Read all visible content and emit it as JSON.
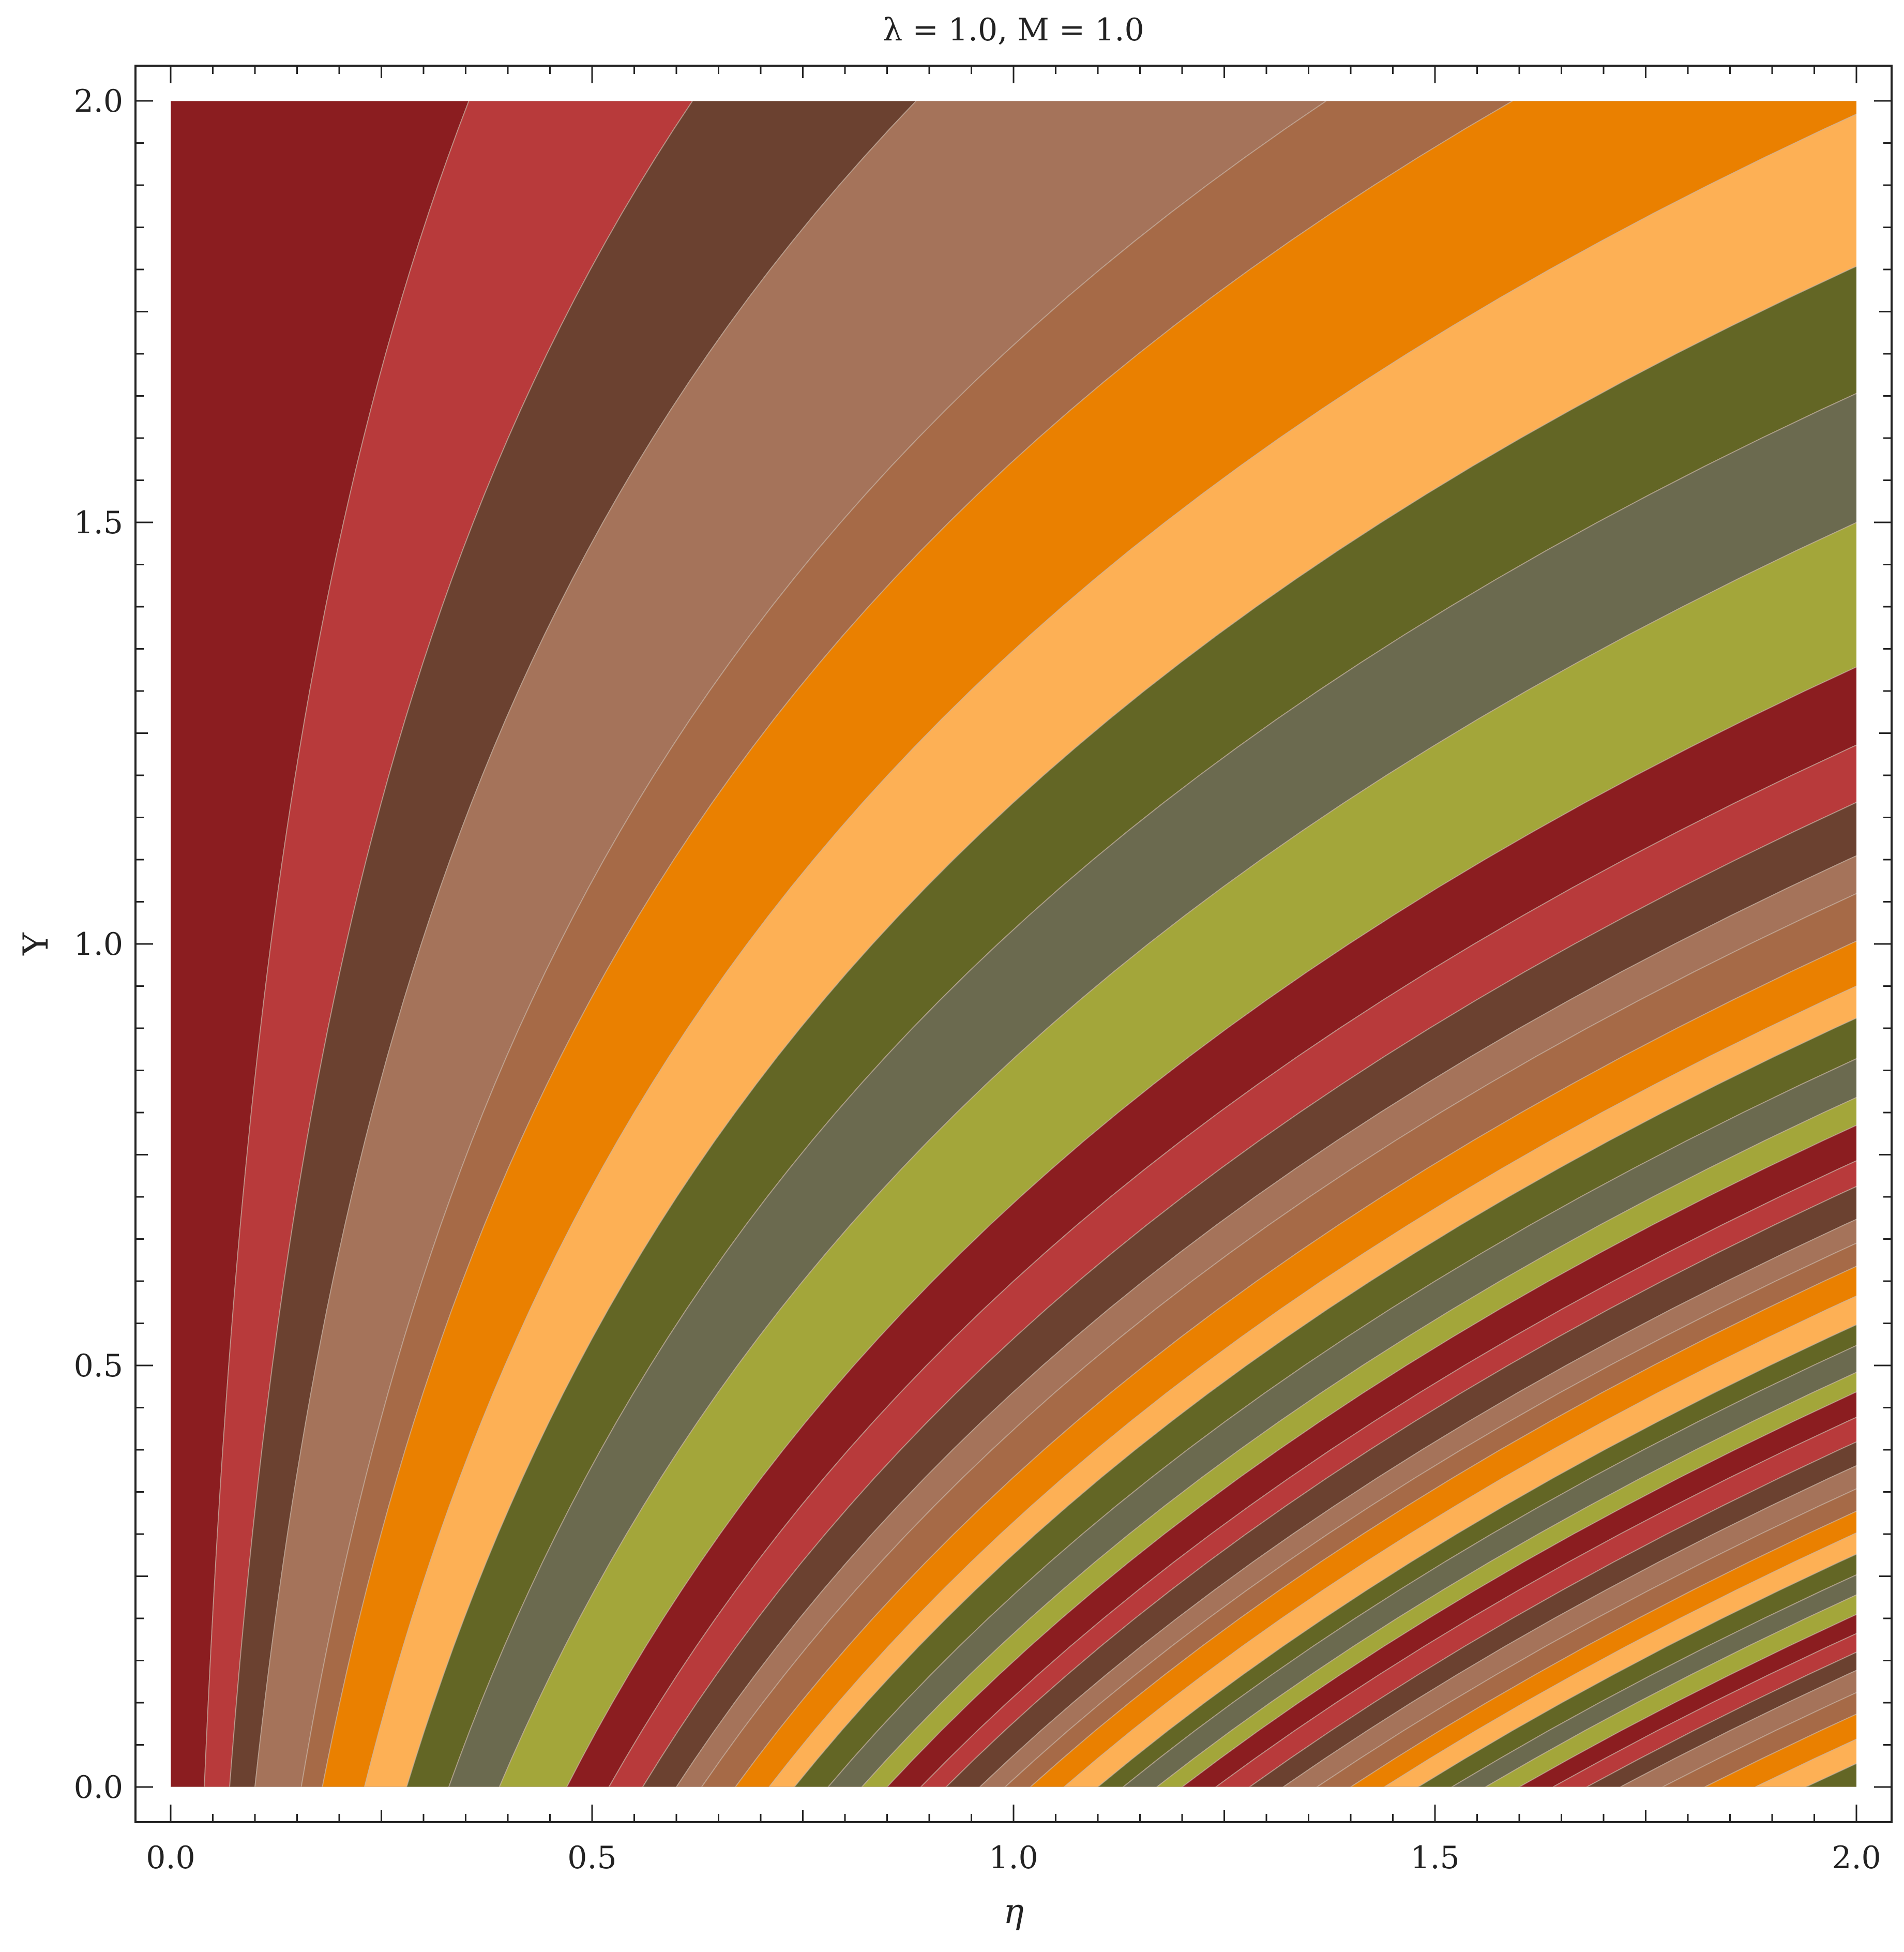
{
  "chart_data": {
    "type": "contour",
    "title": "λ = 1.0, M = 1.0",
    "xlabel": "η",
    "ylabel": "Y",
    "xlim": [
      0.0,
      2.0
    ],
    "ylim": [
      0.0,
      2.0
    ],
    "x_ticks": [
      "0.0",
      "0.5",
      "1.0",
      "1.5",
      "2.0"
    ],
    "y_ticks": [
      "0.0",
      "0.5",
      "1.0",
      "1.5",
      "2.0"
    ],
    "x_tick_values": [
      0.0,
      0.5,
      1.0,
      1.5,
      2.0
    ],
    "y_tick_values": [
      0.0,
      0.5,
      1.0,
      1.5,
      2.0
    ],
    "contour_intercepts_at_y0": [
      0.04,
      0.07,
      0.1,
      0.155,
      0.18,
      0.23,
      0.28,
      0.33,
      0.39,
      0.47,
      0.52,
      0.56,
      0.6,
      0.63,
      0.67,
      0.71,
      0.74,
      0.78,
      0.82,
      0.85,
      0.89,
      0.92,
      0.96,
      0.99,
      1.02,
      1.06,
      1.1,
      1.13,
      1.17,
      1.2,
      1.24,
      1.28,
      1.32,
      1.36,
      1.4,
      1.44,
      1.48,
      1.52,
      1.56,
      1.6,
      1.64,
      1.68,
      1.72,
      1.77,
      1.82,
      1.88,
      1.94
    ],
    "level_palette": [
      "#8b1d20",
      "#b83a3b",
      "#6b4130",
      "#a5735a",
      "#a66a47",
      "#ea8000",
      "#fdb055",
      "#636625",
      "#6b6a4f",
      "#a3a63a"
    ],
    "grid": false
  }
}
